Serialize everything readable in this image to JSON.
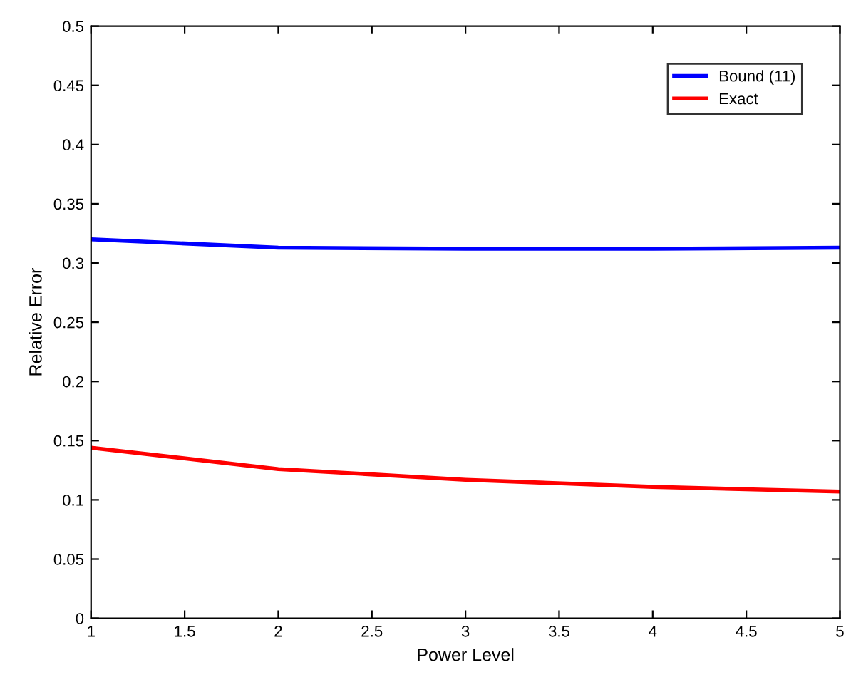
{
  "chart_data": {
    "type": "line",
    "xlabel": "Power Level",
    "ylabel": "Relative Error",
    "x": [
      1,
      2,
      3,
      4,
      5
    ],
    "series": [
      {
        "name": "Bound (11)",
        "color": "#0000ff",
        "values": [
          0.32,
          0.313,
          0.312,
          0.312,
          0.313
        ]
      },
      {
        "name": "Exact",
        "color": "#ff0000",
        "values": [
          0.144,
          0.126,
          0.117,
          0.111,
          0.107
        ]
      }
    ],
    "xlim": [
      1,
      5
    ],
    "xticks": [
      1,
      1.5,
      2,
      2.5,
      3,
      3.5,
      4,
      4.5,
      5
    ],
    "ylim": [
      0,
      0.5
    ],
    "yticks": [
      0,
      0.05,
      0.1,
      0.15,
      0.2,
      0.25,
      0.3,
      0.35,
      0.4,
      0.45,
      0.5
    ],
    "legend": "top right",
    "grid": false,
    "marker": "none",
    "line_style": "solid"
  }
}
